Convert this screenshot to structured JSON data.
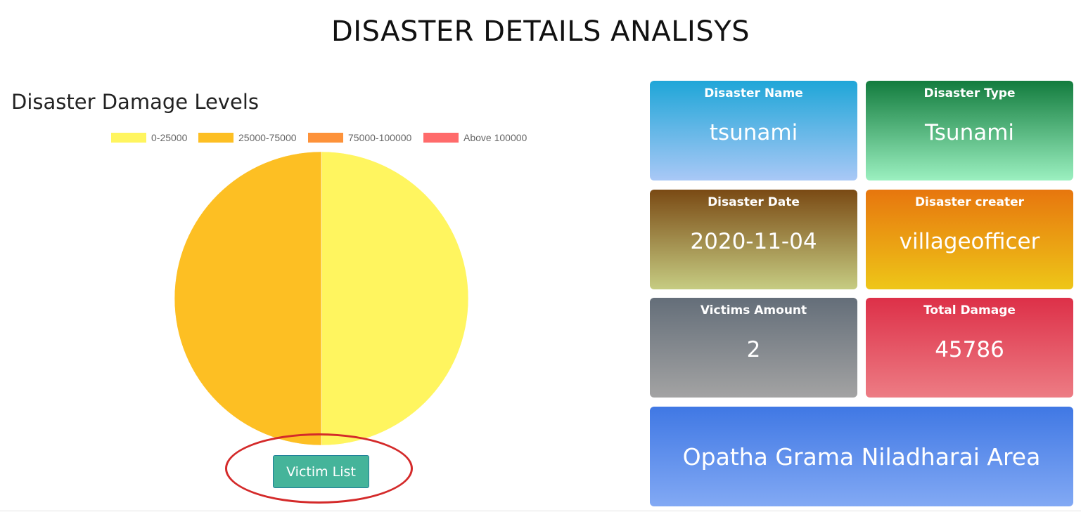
{
  "page": {
    "title": "DISASTER DETAILS ANALISYS"
  },
  "chart_section": {
    "title": "Disaster Damage Levels",
    "button_label": "Victim List"
  },
  "chart_data": {
    "type": "pie",
    "title": "",
    "legend_position": "top",
    "categories": [
      "0-25000",
      "25000-75000",
      "75000-100000",
      "Above 100000"
    ],
    "values": [
      1,
      1,
      0,
      0
    ],
    "colors": [
      "#fff55f",
      "#fdbf23",
      "#fd923a",
      "#ff6b6b"
    ]
  },
  "cards": {
    "disaster_name": {
      "label": "Disaster Name",
      "value": "tsunami"
    },
    "disaster_type": {
      "label": "Disaster Type",
      "value": "Tsunami"
    },
    "disaster_date": {
      "label": "Disaster Date",
      "value": "2020-11-04"
    },
    "disaster_creator": {
      "label": "Disaster creater",
      "value": "villageofficer"
    },
    "victims_amount": {
      "label": "Victims Amount",
      "value": "2"
    },
    "total_damage": {
      "label": "Total Damage",
      "value": "45786"
    },
    "area": {
      "value": "Opatha Grama Niladharai Area"
    }
  }
}
